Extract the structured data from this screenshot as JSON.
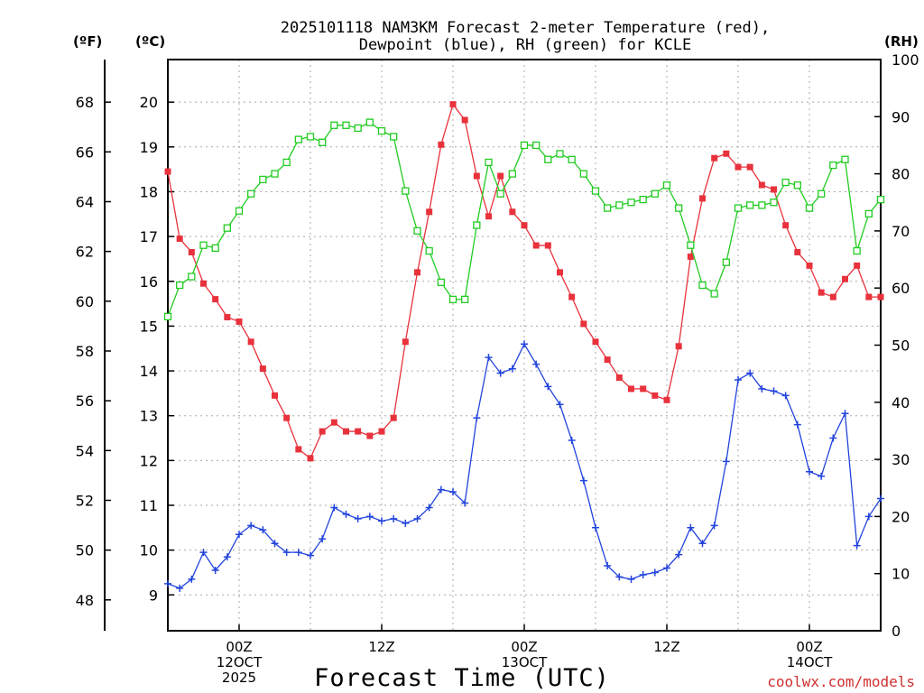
{
  "chart_data": {
    "type": "line",
    "title_lines": [
      "2025101118 NAM3KM Forecast 2-meter Temperature (red),",
      "Dewpoint (blue), RH (green) for KCLE"
    ],
    "xlabel": "Forecast Time (UTC)",
    "credit": "coolwx.com/models",
    "units": {
      "fahrenheit": "(ºF)",
      "celsius": "(ºC)",
      "rh": "(RH)"
    },
    "x_range_hours": [
      0,
      60
    ],
    "celsius_range": [
      8.2,
      20.95
    ],
    "rh_range": [
      0,
      100
    ],
    "fahrenheit_ticks": [
      "48",
      "50",
      "52",
      "54",
      "56",
      "58",
      "60",
      "62",
      "64",
      "66",
      "68"
    ],
    "celsius_ticks": [
      "9",
      "10",
      "11",
      "12",
      "13",
      "14",
      "15",
      "16",
      "17",
      "18",
      "19",
      "20"
    ],
    "rh_ticks": [
      "0",
      "10",
      "20",
      "30",
      "40",
      "50",
      "60",
      "70",
      "80",
      "90",
      "100"
    ],
    "x_ticks": [
      {
        "hour": 6,
        "lines": [
          "00Z",
          "12OCT",
          "2025"
        ]
      },
      {
        "hour": 18,
        "lines": [
          "12Z"
        ]
      },
      {
        "hour": 30,
        "lines": [
          "00Z",
          "13OCT"
        ]
      },
      {
        "hour": 42,
        "lines": [
          "12Z"
        ]
      },
      {
        "hour": 54,
        "lines": [
          "00Z",
          "14OCT"
        ]
      }
    ],
    "grid_hours": [
      6,
      12,
      18,
      24,
      30,
      36,
      42,
      48,
      54
    ],
    "grid_celsius": [
      9,
      10,
      11,
      12,
      13,
      14,
      15,
      16,
      17,
      18,
      19,
      20
    ],
    "series": [
      {
        "name": "2-meter Temperature",
        "axis": "celsius",
        "color": "#e8323c",
        "marker": "filled-square",
        "values": [
          18.45,
          16.95,
          16.65,
          15.95,
          15.6,
          15.2,
          15.1,
          14.65,
          14.05,
          13.45,
          12.95,
          12.25,
          12.05,
          12.65,
          12.85,
          12.65,
          12.65,
          12.55,
          12.65,
          12.95,
          14.65,
          16.2,
          17.55,
          19.05,
          19.95,
          19.6,
          18.35,
          17.45,
          18.35,
          17.55,
          17.25,
          16.8,
          16.8,
          16.2,
          15.65,
          15.05,
          14.65,
          14.25,
          13.85,
          13.6,
          13.6,
          13.45,
          13.35,
          14.55,
          16.55,
          17.85,
          18.75,
          18.85,
          18.55,
          18.55,
          18.15,
          18.05,
          17.25,
          16.65,
          16.35,
          15.75,
          15.65,
          16.05,
          16.35,
          15.65,
          15.65
        ]
      },
      {
        "name": "Dewpoint",
        "axis": "celsius",
        "color": "#2244dd",
        "marker": "plus",
        "values": [
          9.25,
          9.15,
          9.35,
          9.95,
          9.55,
          9.85,
          10.35,
          10.55,
          10.45,
          10.15,
          9.95,
          9.95,
          9.88,
          10.25,
          10.95,
          10.8,
          10.7,
          10.75,
          10.65,
          10.7,
          10.6,
          10.7,
          10.95,
          11.35,
          11.3,
          11.05,
          12.95,
          14.3,
          13.95,
          14.05,
          14.6,
          14.15,
          13.65,
          13.25,
          12.45,
          11.55,
          10.5,
          9.65,
          9.4,
          9.35,
          9.45,
          9.5,
          9.6,
          9.9,
          10.5,
          10.15,
          10.55,
          11.98,
          13.8,
          13.95,
          13.6,
          13.55,
          13.45,
          12.8,
          11.75,
          11.65,
          12.5,
          13.05,
          10.1,
          10.75,
          11.15
        ]
      },
      {
        "name": "RH",
        "axis": "rh",
        "color": "#22cc22",
        "marker": "open-square",
        "values": [
          55,
          60.5,
          62,
          67.5,
          67,
          70.5,
          73.5,
          76.5,
          79,
          80,
          82,
          86,
          86.5,
          85.5,
          88.5,
          88.5,
          88,
          89,
          87.5,
          86.5,
          77,
          70,
          66.5,
          61,
          58,
          58,
          71,
          82,
          76.5,
          80,
          85,
          85,
          82.5,
          83.5,
          82.5,
          80,
          77,
          74,
          74.5,
          75,
          75.5,
          76.5,
          78,
          74,
          67.5,
          60.5,
          59,
          64.5,
          74,
          74.5,
          74.5,
          75,
          78.5,
          78,
          74,
          76.5,
          81.5,
          82.5,
          66.5,
          73,
          75.5
        ]
      }
    ]
  }
}
